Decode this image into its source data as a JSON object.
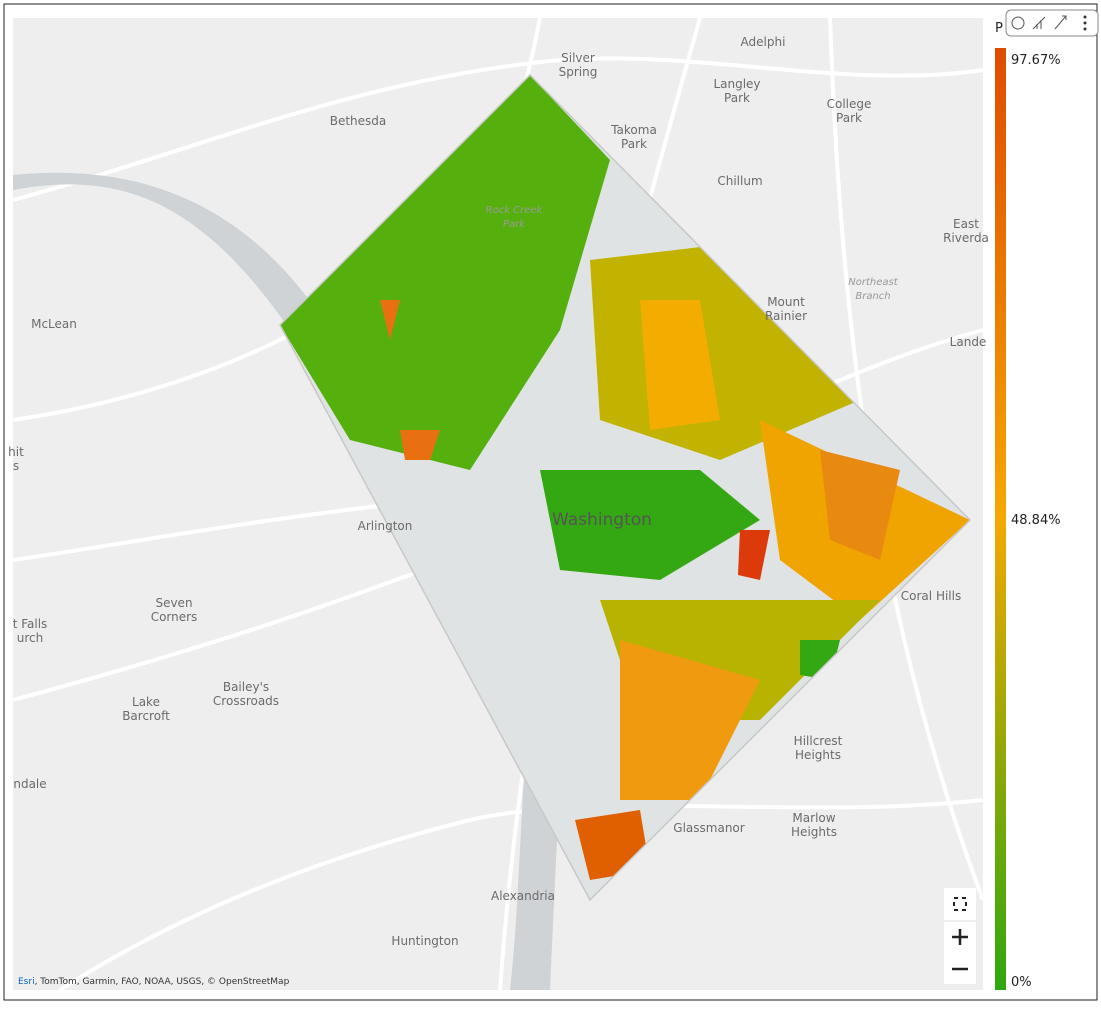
{
  "legend": {
    "title": "P",
    "max": "97.67%",
    "mid": "48.84%",
    "min": "0%"
  },
  "attribution": {
    "provider": "Esri",
    "rest": ", TomTom, Garmin, FAO, NOAA, USGS, © OpenStreetMap"
  },
  "places": [
    {
      "lines": [
        "Silver",
        "Spring"
      ]
    },
    {
      "lines": [
        "Adelphi"
      ]
    },
    {
      "lines": [
        "Langley",
        "Park"
      ]
    },
    {
      "lines": [
        "College",
        "Park"
      ]
    },
    {
      "lines": [
        "Bethesda"
      ]
    },
    {
      "lines": [
        "Takoma",
        "Park"
      ]
    },
    {
      "lines": [
        "Chillum"
      ]
    },
    {
      "lines": [
        "East",
        "Riverda"
      ]
    },
    {
      "lines": [
        "Rock Creek",
        "Park"
      ]
    },
    {
      "lines": [
        "Northeast",
        "Branch"
      ]
    },
    {
      "lines": [
        "Mount",
        "Rainier"
      ]
    },
    {
      "lines": [
        "McLean"
      ]
    },
    {
      "lines": [
        "Lande"
      ]
    },
    {
      "lines": [
        "hit",
        "s"
      ]
    },
    {
      "lines": [
        "Arlington"
      ]
    },
    {
      "lines": [
        "Washington"
      ]
    },
    {
      "lines": [
        "Coral Hills"
      ]
    },
    {
      "lines": [
        "Seven",
        "Corners"
      ]
    },
    {
      "lines": [
        "t Falls",
        "urch"
      ]
    },
    {
      "lines": [
        "Lake",
        "Barcroft"
      ]
    },
    {
      "lines": [
        "Bailey's",
        "Crossroads"
      ]
    },
    {
      "lines": [
        "ndale"
      ]
    },
    {
      "lines": [
        "Hillcrest",
        "Heights"
      ]
    },
    {
      "lines": [
        "Marlow",
        "Heights"
      ]
    },
    {
      "lines": [
        "Glassmanor"
      ]
    },
    {
      "lines": [
        "Alexandria"
      ]
    },
    {
      "lines": [
        "Huntington"
      ]
    }
  ]
}
